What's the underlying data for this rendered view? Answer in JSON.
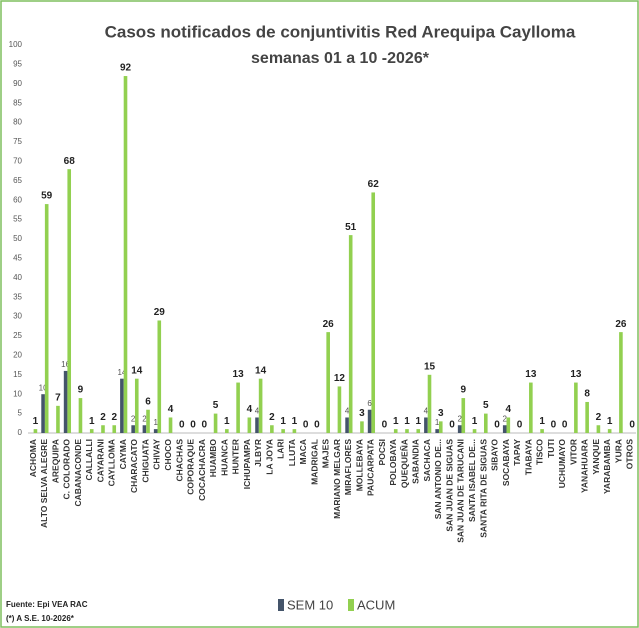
{
  "chart_data": {
    "type": "bar",
    "title": "Casos notificados de conjuntivitis Red Arequipa Caylloma",
    "subtitle": "semanas 01 a 10 -2026*",
    "source": "Fuente: Epi VEA RAC",
    "note": "(*) A S.E. 10-2026*",
    "categories": [
      "ACHOMA",
      "ALTO SELVA ALEGRE",
      "AREQUIPA",
      "C. COLORADO",
      "CABANACONDE",
      "CALLALLI",
      "CAYARANI",
      "CAYLLOMA",
      "CAYMA",
      "CHARACATO",
      "CHIGUATA",
      "CHIVAY",
      "CHOCO",
      "CHACHAS",
      "COPORAQUE",
      "COCACHACRA",
      "HUAMBO",
      "HUANCA",
      "HUNTER",
      "ICHUPAMPA",
      "JLBYR",
      "LA JOYA",
      "LARI",
      "LLUTA",
      "MACA",
      "MADRIGAL",
      "MAJES",
      "MARIANO MELGAR",
      "MIRAFLORES",
      "MOLLEBAYA",
      "PAUCARPATA",
      "POCSI",
      "POLOBAYA",
      "QUEQUEÑA",
      "SABANDIA",
      "SACHACA",
      "SAN ANTONIO DE...",
      "SAN JUAN DE SIGUAS",
      "SAN JUAN DE TARUCANI",
      "SANTA ISABEL DE...",
      "SANTA RITA DE SIGUAS",
      "SIBAYO",
      "SOCABAYA",
      "TAPAY",
      "TIABAYA",
      "TISCO",
      "TUTI",
      "UCHUMAYO",
      "VITOR",
      "YANAHUARA",
      "YANQUE",
      "YARABAMBA",
      "YURA",
      "OTROS"
    ],
    "series": [
      {
        "name": "SEM 10",
        "color": "#44546a",
        "values": [
          0,
          10,
          0,
          16,
          0,
          0,
          0,
          0,
          14,
          2,
          2,
          1,
          0,
          0,
          0,
          0,
          0,
          0,
          0,
          0,
          4,
          0,
          0,
          0,
          0,
          0,
          0,
          0,
          4,
          0,
          6,
          0,
          0,
          0,
          0,
          4,
          1,
          0,
          2,
          0,
          0,
          0,
          2,
          0,
          0,
          0,
          0,
          0,
          0,
          0,
          0,
          0,
          0,
          0
        ]
      },
      {
        "name": "ACUM",
        "color": "#92d050",
        "values": [
          1,
          59,
          7,
          68,
          9,
          1,
          2,
          2,
          92,
          14,
          6,
          29,
          4,
          0,
          0,
          0,
          5,
          1,
          13,
          4,
          14,
          2,
          1,
          1,
          0,
          0,
          26,
          12,
          51,
          3,
          62,
          0,
          1,
          1,
          1,
          15,
          3,
          0,
          9,
          1,
          5,
          0,
          4,
          0,
          13,
          1,
          0,
          0,
          13,
          8,
          2,
          1,
          26,
          0
        ]
      }
    ],
    "ylim": [
      0,
      100
    ],
    "yticks": [
      0,
      5,
      10,
      15,
      20,
      25,
      30,
      35,
      40,
      45,
      50,
      55,
      60,
      65,
      70,
      75,
      80,
      85,
      90,
      95,
      100
    ],
    "grid": false
  }
}
